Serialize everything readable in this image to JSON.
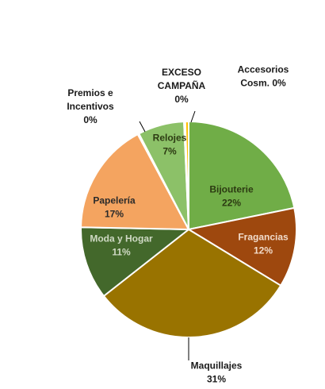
{
  "chart_data": {
    "type": "pie",
    "title": "",
    "slices": [
      {
        "label_lines": [
          "Bijouterie",
          "22%"
        ],
        "value": 22,
        "color": "#70ad47",
        "text_color": "#2c3a12"
      },
      {
        "label_lines": [
          "Fragancias",
          "12%"
        ],
        "value": 12,
        "color": "#9e480e",
        "text_color": "#f2dccb"
      },
      {
        "label_lines": [
          "Maquillajes",
          "31%"
        ],
        "value": 31,
        "color": "#997300",
        "text_color": "#1a1a1a"
      },
      {
        "label_lines": [
          "Moda y Hogar",
          "11%"
        ],
        "value": 11,
        "color": "#43682b",
        "text_color": "#cfd9c4"
      },
      {
        "label_lines": [
          "Papelería",
          "17%"
        ],
        "value": 17,
        "color": "#f4a460",
        "text_color": "#2a2a2a"
      },
      {
        "label_lines": [
          "Premios e",
          "Incentivos",
          "0%"
        ],
        "value": 0.2,
        "color": "#c9c9c9",
        "text_color": "#1a1a1a"
      },
      {
        "label_lines": [
          "Relojes",
          "7%"
        ],
        "value": 7,
        "color": "#8cc168",
        "text_color": "#2c3a12"
      },
      {
        "label_lines": [
          "EXCESO",
          "CAMPAÑA",
          "0%"
        ],
        "value": 0.2,
        "color": "#d9d9d9",
        "text_color": "#1a1a1a"
      },
      {
        "label_lines": [
          "Accesorios",
          "Cosm. 0%"
        ],
        "value": 0.5,
        "color": "#ffc000",
        "text_color": "#1a1a1a"
      }
    ]
  }
}
